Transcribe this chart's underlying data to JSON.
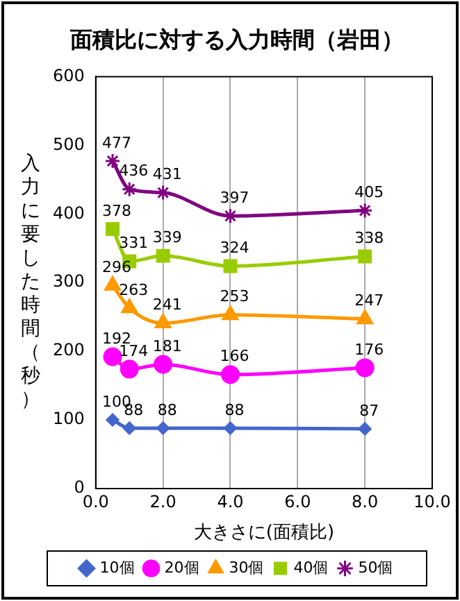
{
  "chart_data": {
    "type": "line",
    "title": "面積比に対する入力時間（岩田）",
    "xlabel": "大きさに(面積比)",
    "ylabel": "入力に要した時間（秒）",
    "x": [
      0.5,
      1,
      2,
      4,
      8
    ],
    "series": [
      {
        "name": "10個",
        "color": "#4466cc",
        "marker": "diamond",
        "values": [
          100,
          88,
          88,
          88,
          87
        ]
      },
      {
        "name": "20個",
        "color": "#ff00ff",
        "marker": "circle",
        "values": [
          192,
          174,
          181,
          166,
          176
        ]
      },
      {
        "name": "30個",
        "color": "#ff9900",
        "marker": "triangle",
        "values": [
          296,
          263,
          241,
          253,
          247
        ]
      },
      {
        "name": "40個",
        "color": "#99cc00",
        "marker": "square",
        "values": [
          378,
          331,
          339,
          324,
          338
        ]
      },
      {
        "name": "50個",
        "color": "#800080",
        "marker": "cross",
        "values": [
          477,
          436,
          431,
          397,
          405
        ]
      }
    ],
    "xlim": [
      0,
      10
    ],
    "xticks": [
      {
        "value": 0,
        "label": "0.0"
      },
      {
        "value": 2,
        "label": "2.0"
      },
      {
        "value": 4,
        "label": "4.0"
      },
      {
        "value": 6,
        "label": "6.0"
      },
      {
        "value": 8,
        "label": "8.0"
      },
      {
        "value": 10,
        "label": "10.0"
      }
    ],
    "ylim": [
      0,
      600
    ],
    "yticks": [
      0,
      100,
      200,
      300,
      400,
      500,
      600
    ],
    "grid": "x",
    "legend": "bottom",
    "data_labels": true
  }
}
